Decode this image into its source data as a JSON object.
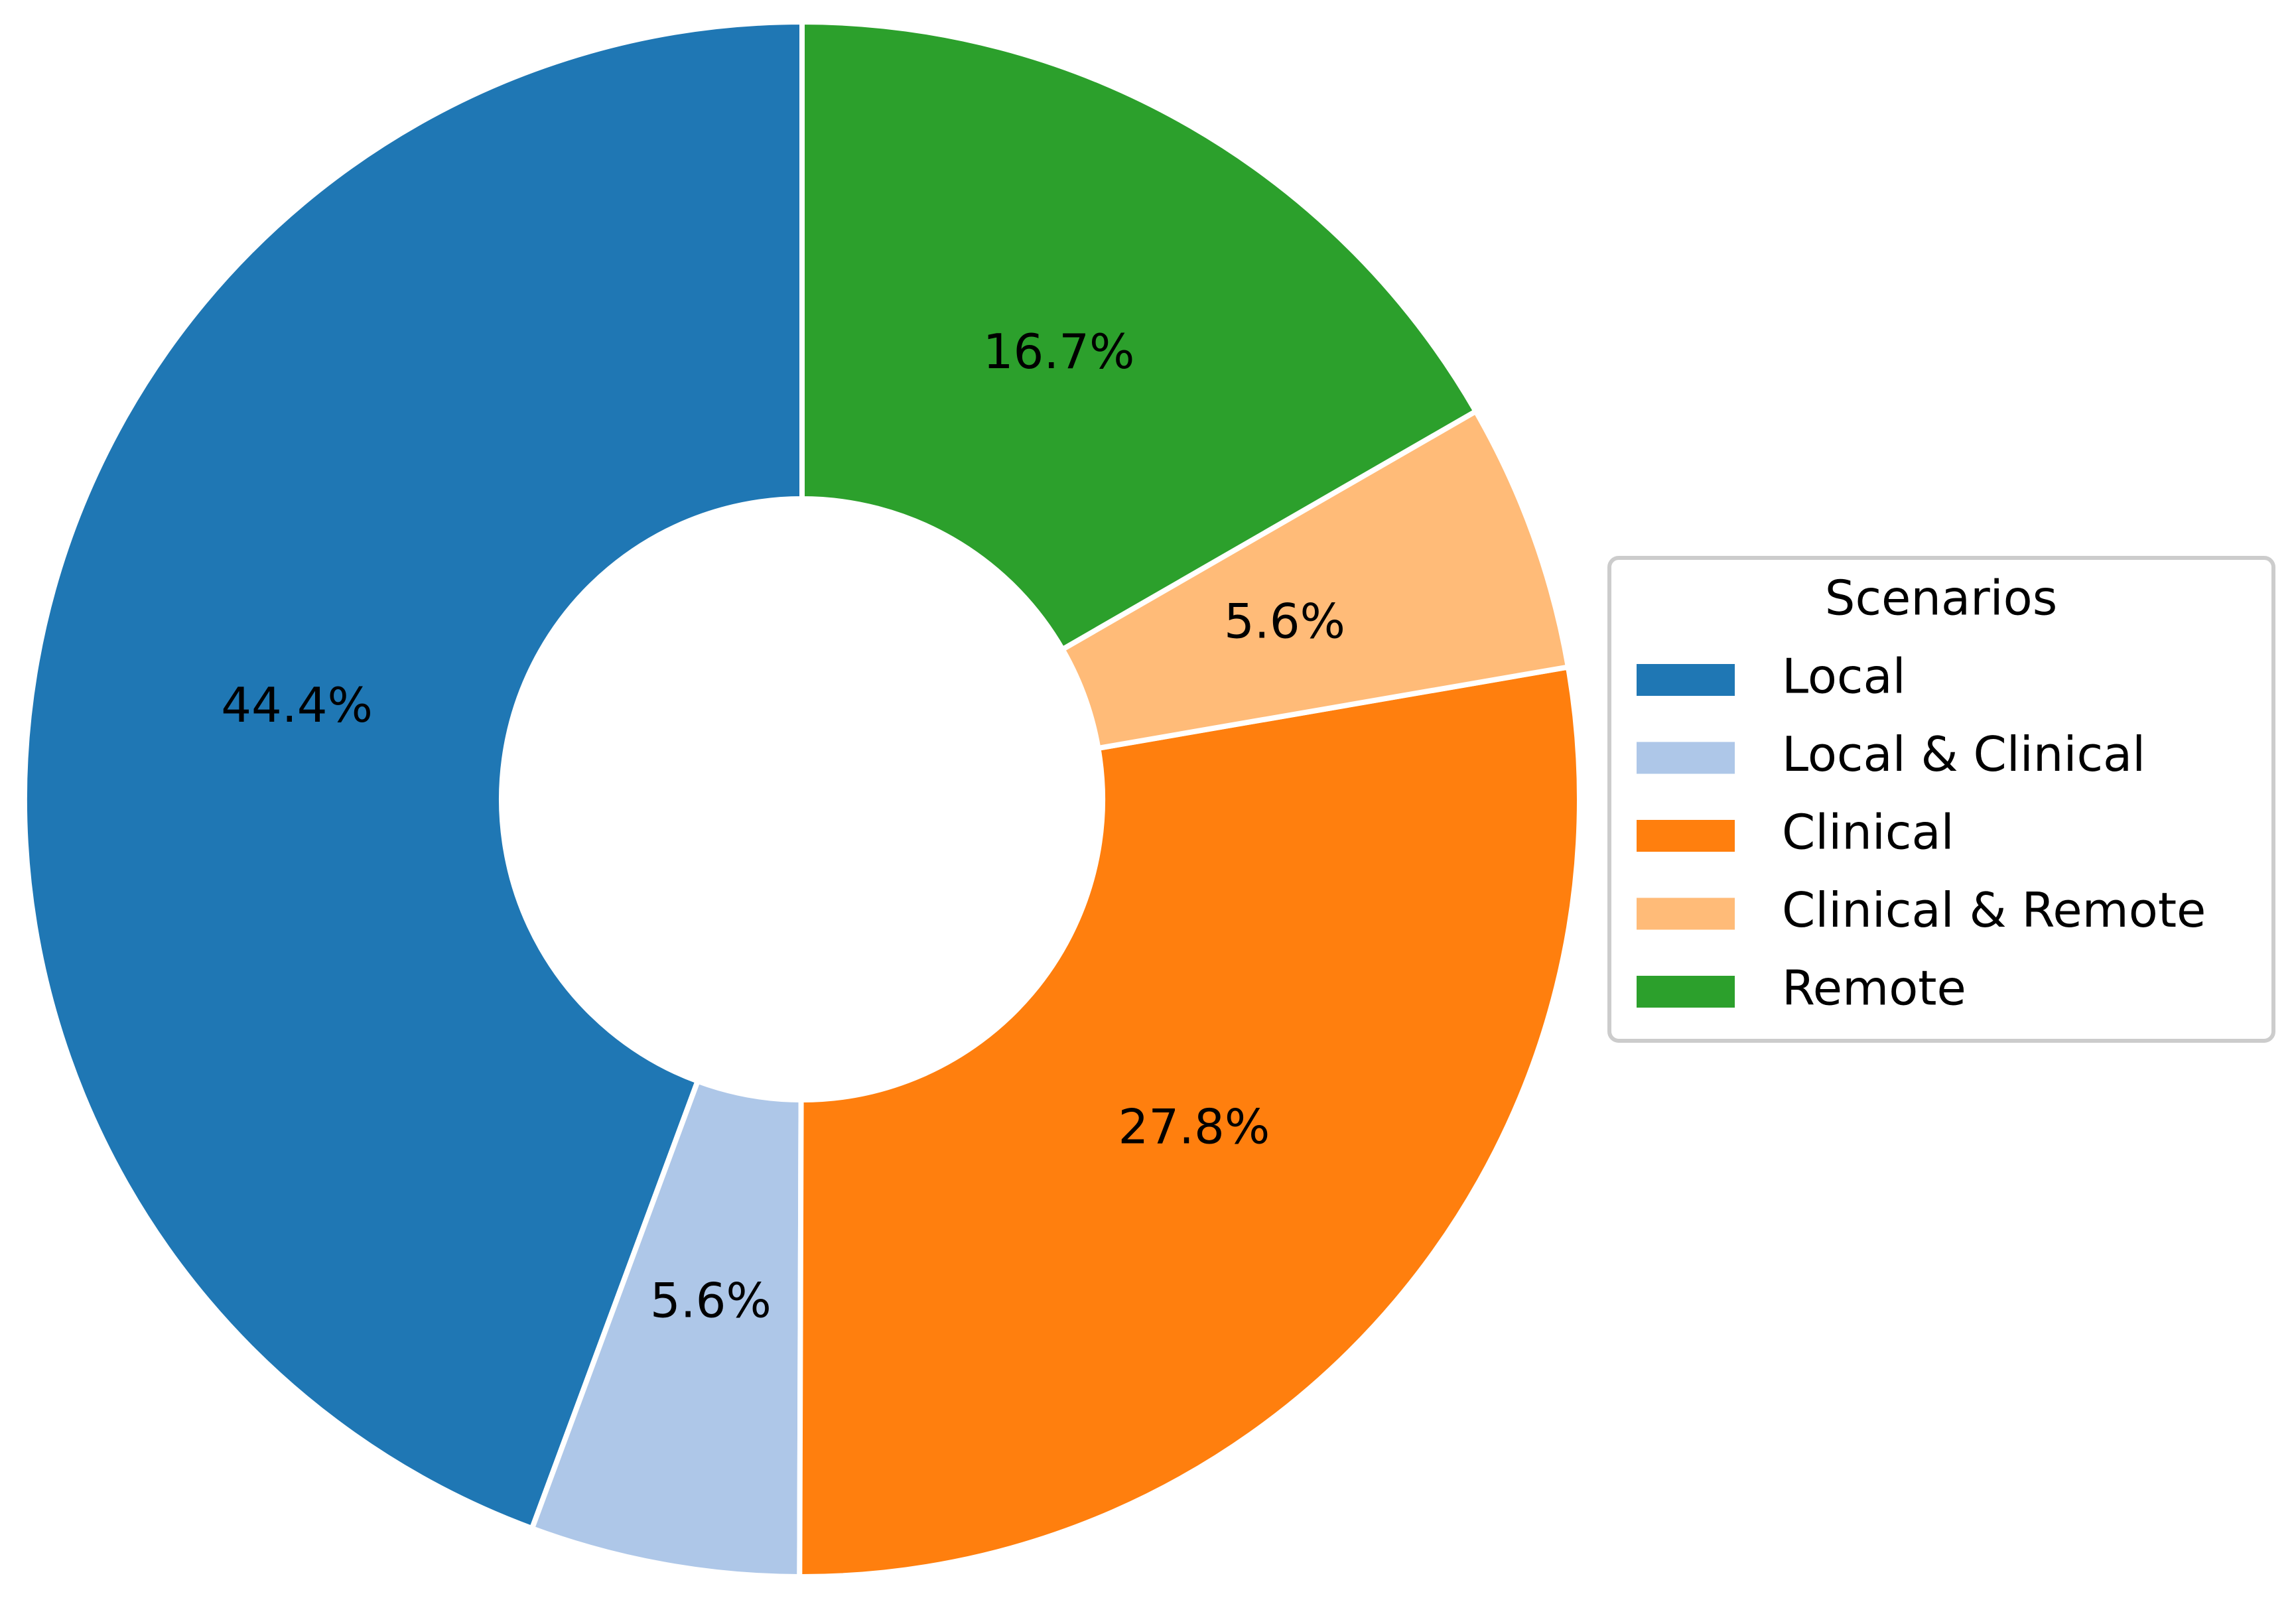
{
  "chart_data": {
    "type": "pie",
    "style": "donut",
    "categories": [
      "Local",
      "Local & Clinical",
      "Clinical",
      "Clinical & Remote",
      "Remote"
    ],
    "values": [
      44.4,
      5.6,
      27.8,
      5.6,
      16.7
    ],
    "percent_labels": [
      "44.4%",
      "5.6%",
      "27.8%",
      "5.6%",
      "16.7%"
    ],
    "colors": [
      "#1f77b4",
      "#aec7e8",
      "#ff7f0e",
      "#ffbb78",
      "#2ca02c"
    ],
    "start": "top",
    "direction": "counterclockwise",
    "legend": {
      "title": "Scenarios",
      "placement": "right",
      "entries": [
        "Local",
        "Local & Clinical",
        "Clinical",
        "Clinical & Remote",
        "Remote"
      ]
    }
  }
}
